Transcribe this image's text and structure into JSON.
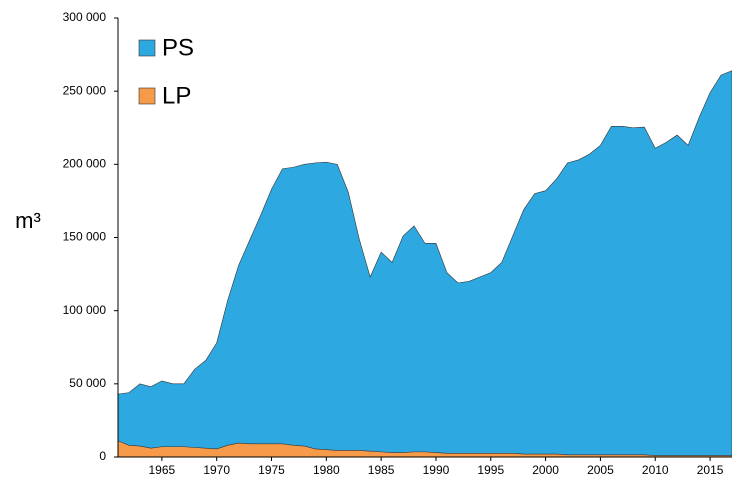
{
  "chart_data": {
    "type": "area",
    "stacked": false,
    "y_label": "m³",
    "x": [
      1961,
      1962,
      1963,
      1964,
      1965,
      1966,
      1967,
      1968,
      1969,
      1970,
      1971,
      1972,
      1973,
      1974,
      1975,
      1976,
      1977,
      1978,
      1979,
      1980,
      1981,
      1982,
      1983,
      1984,
      1985,
      1986,
      1987,
      1988,
      1989,
      1990,
      1991,
      1992,
      1993,
      1994,
      1995,
      1996,
      1997,
      1998,
      1999,
      2000,
      2001,
      2002,
      2003,
      2004,
      2005,
      2006,
      2007,
      2008,
      2009,
      2010,
      2011,
      2012,
      2013,
      2014,
      2015,
      2016,
      2017
    ],
    "series": [
      {
        "name": "PS",
        "color": "#2ea8e0",
        "values": [
          43000,
          44000,
          50000,
          48000,
          52000,
          50000,
          50000,
          60000,
          66000,
          78000,
          107000,
          131000,
          148000,
          165000,
          183000,
          197000,
          198000,
          200000,
          201000,
          201500,
          200000,
          181000,
          149000,
          123000,
          140000,
          133000,
          151000,
          158000,
          146000,
          146000,
          126000,
          119000,
          120000,
          123000,
          126000,
          133000,
          151000,
          169000,
          180000,
          182000,
          190000,
          201000,
          203000,
          207000,
          213000,
          226000,
          226000,
          225000,
          225500,
          211000,
          215000,
          220000,
          213000,
          232000,
          249000,
          261000,
          264000
        ]
      },
      {
        "name": "LP",
        "color": "#f79a4a",
        "values": [
          11000,
          8000,
          7500,
          6000,
          7000,
          7000,
          7000,
          6500,
          6000,
          5500,
          8000,
          9500,
          9000,
          9000,
          9000,
          9000,
          8000,
          7500,
          5500,
          5000,
          4500,
          4500,
          4500,
          4000,
          3500,
          3000,
          3000,
          3500,
          3500,
          3000,
          2500,
          2500,
          2500,
          2500,
          2500,
          2500,
          2500,
          2000,
          2000,
          2000,
          2000,
          1500,
          1500,
          1500,
          1500,
          1500,
          1500,
          1500,
          1500,
          1000,
          1000,
          1000,
          1000,
          1000,
          1000,
          1000,
          1000
        ]
      }
    ],
    "xlim": [
      1961,
      2017
    ],
    "xticks": [
      1965,
      1970,
      1975,
      1980,
      1985,
      1990,
      1995,
      2000,
      2005,
      2010,
      2015
    ],
    "ylim": [
      0,
      300000
    ],
    "yticks": [
      {
        "value": 0,
        "label": "0"
      },
      {
        "value": 50000,
        "label": "50 000"
      },
      {
        "value": 100000,
        "label": "100 000"
      },
      {
        "value": 150000,
        "label": "150 000"
      },
      {
        "value": 200000,
        "label": "200 000"
      },
      {
        "value": 250000,
        "label": "250 000"
      },
      {
        "value": 300000,
        "label": "300 000"
      }
    ],
    "legend": "top-left",
    "grid": false
  }
}
